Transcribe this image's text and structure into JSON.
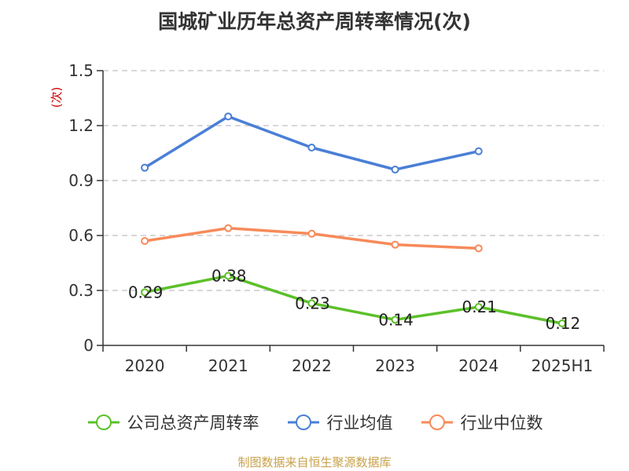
{
  "chart_data": {
    "type": "line",
    "title": "国城矿业历年总资产周转率情况(次)",
    "ylabel": "(次)",
    "xlabel": "",
    "categories": [
      "2020",
      "2021",
      "2022",
      "2023",
      "2024",
      "2025H1"
    ],
    "ylim": [
      0,
      1.5
    ],
    "yticks": [
      "0",
      "0.3",
      "0.6",
      "0.9",
      "1.2",
      "1.5"
    ],
    "ytick_values": [
      0,
      0.3,
      0.6,
      0.9,
      1.2,
      1.5
    ],
    "grid": true,
    "legend_position": "bottom",
    "series": [
      {
        "name": "公司总资产周转率",
        "color": "#5cc02a",
        "values": [
          0.29,
          0.38,
          0.23,
          0.14,
          0.21,
          0.12
        ],
        "labels": [
          "0.29",
          "0.38",
          "0.23",
          "0.14",
          "0.21",
          "0.12"
        ]
      },
      {
        "name": "行业均值",
        "color": "#4a7fd6",
        "values": [
          0.97,
          1.25,
          1.08,
          0.96,
          1.06,
          null
        ]
      },
      {
        "name": "行业中位数",
        "color": "#f78a5a",
        "values": [
          0.57,
          0.64,
          0.61,
          0.55,
          0.53,
          null
        ]
      }
    ]
  },
  "source": "制图数据来自恒生聚源数据库",
  "colors": {
    "axis": "#333333",
    "grid": "#cccccc",
    "ylabel": "#cc0000"
  }
}
